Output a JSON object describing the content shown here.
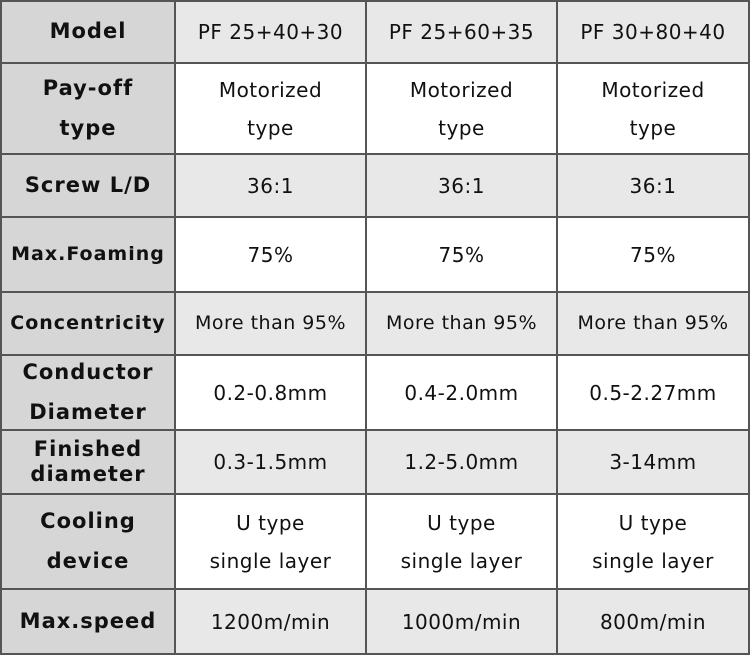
{
  "table": {
    "rows": [
      [
        [
          "Model"
        ],
        [
          "PF 25+40+30"
        ],
        [
          "PF 25+60+35"
        ],
        [
          "PF 30+80+40"
        ]
      ],
      [
        [
          "Pay-off",
          "type"
        ],
        [
          "Motorized",
          "type"
        ],
        [
          "Motorized",
          "type"
        ],
        [
          "Motorized",
          "type"
        ]
      ],
      [
        [
          "Screw L/D"
        ],
        [
          "36:1"
        ],
        [
          "36:1"
        ],
        [
          "36:1"
        ]
      ],
      [
        [
          "Max.Foaming"
        ],
        [
          "75%"
        ],
        [
          "75%"
        ],
        [
          "75%"
        ]
      ],
      [
        [
          "Concentricity"
        ],
        [
          "More than 95%"
        ],
        [
          "More than 95%"
        ],
        [
          "More than 95%"
        ]
      ],
      [
        [
          "Conductor",
          "Diameter"
        ],
        [
          "0.2-0.8mm"
        ],
        [
          "0.4-2.0mm"
        ],
        [
          "0.5-2.27mm"
        ]
      ],
      [
        [
          "Finished",
          "diameter"
        ],
        [
          "0.3-1.5mm"
        ],
        [
          "1.2-5.0mm"
        ],
        [
          "3-14mm"
        ]
      ],
      [
        [
          "Cooling",
          "device"
        ],
        [
          "U type",
          "single layer"
        ],
        [
          "U type",
          "single layer"
        ],
        [
          "U type",
          "single layer"
        ]
      ],
      [
        [
          "Max.speed"
        ],
        [
          "1200m/min"
        ],
        [
          "1000m/min"
        ],
        [
          "800m/min"
        ]
      ]
    ]
  }
}
